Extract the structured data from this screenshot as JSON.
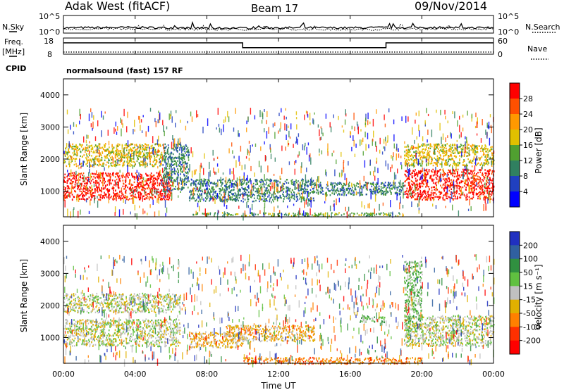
{
  "header": {
    "title": "Adak West (fitACF)",
    "beam": "Beam 17",
    "date": "09/Nov/2014"
  },
  "sky_panel": {
    "left_label": "N.Sky",
    "right_label": "N.Search",
    "left_ticks": [
      "10^5",
      "10^0"
    ],
    "right_ticks": [
      "10^5",
      "10^0"
    ]
  },
  "freq_panel": {
    "left_label_line1": "Freq.",
    "left_label_line2": "[MHz]",
    "left_ticks": [
      "18",
      "8"
    ],
    "right_label": "Nave",
    "right_ticks": [
      "60",
      "0"
    ],
    "cpid_label": "CPID",
    "cpid_text": "normalsound (fast) 157 RF"
  },
  "x_axis": {
    "ticks": [
      "00:00",
      "04:00",
      "08:00",
      "12:00",
      "16:00",
      "20:00",
      "00:00"
    ],
    "label": "Time UT"
  },
  "power_panel": {
    "ylabel": "Slant Range [km]",
    "yticks": [
      "1000",
      "2000",
      "3000",
      "4000"
    ],
    "colorbar_label": "Power [dB]",
    "colorbar_ticks": [
      "4",
      "8",
      "12",
      "16",
      "20",
      "24",
      "28"
    ],
    "colors": [
      "#0000ff",
      "#2040c0",
      "#308060",
      "#50a030",
      "#e0c000",
      "#ff9900",
      "#ff5000",
      "#ff0000"
    ]
  },
  "velocity_panel": {
    "ylabel": "Slant Range [km]",
    "yticks": [
      "1000",
      "2000",
      "3000",
      "4000"
    ],
    "colorbar_label": "Velocity [m s⁻¹]",
    "colorbar_ticks": [
      "200",
      "100",
      "50",
      "15",
      "-15",
      "-50",
      "-100",
      "-200"
    ],
    "colors": [
      "#2030c0",
      "#3060a0",
      "#309040",
      "#60c040",
      "#c0c0c0",
      "#e0b000",
      "#ff8000",
      "#ff3000",
      "#ff0000"
    ]
  },
  "chart_data": [
    {
      "type": "line",
      "title": "N.Sky / N.Search",
      "x_unit": "hours UT",
      "ylim_log10": [
        0,
        5
      ],
      "series": [
        {
          "name": "N.Sky",
          "x": [
            0,
            4,
            8,
            12,
            16,
            20,
            24
          ],
          "log10_values": [
            1.5,
            1.6,
            1.4,
            1.5,
            1.5,
            1.6,
            1.5
          ]
        },
        {
          "name": "N.Search",
          "x": [
            0,
            4,
            8,
            12,
            16,
            20,
            24
          ],
          "log10_values": [
            1.1,
            1.2,
            1.0,
            1.1,
            1.0,
            1.2,
            1.1
          ]
        }
      ]
    },
    {
      "type": "line",
      "title": "Freq. [MHz] / Nave",
      "x_unit": "hours UT",
      "ylim": [
        8,
        18
      ],
      "y2lim": [
        0,
        60
      ],
      "series": [
        {
          "name": "Freq.",
          "x": [
            0,
            10,
            10,
            18,
            18,
            24
          ],
          "values": [
            15,
            15,
            12,
            12,
            15,
            15
          ]
        },
        {
          "name": "Nave",
          "x": [
            0,
            24
          ],
          "values": [
            8,
            8
          ]
        }
      ]
    },
    {
      "type": "heatmap",
      "title": "Power [dB]",
      "x_unit": "hours UT",
      "y_unit": "km",
      "xlim": [
        0,
        24
      ],
      "ylim": [
        200,
        4500
      ],
      "clim": [
        0,
        30
      ],
      "regions": [
        {
          "t": [
            0,
            6
          ],
          "r": [
            750,
            1600
          ],
          "value": 28
        },
        {
          "t": [
            0,
            5.5
          ],
          "r": [
            1800,
            2500
          ],
          "value": 18
        },
        {
          "t": [
            5.5,
            7
          ],
          "r": [
            1000,
            2500
          ],
          "value": 8
        },
        {
          "t": [
            7,
            14
          ],
          "r": [
            700,
            1400
          ],
          "value": 10
        },
        {
          "t": [
            14,
            19
          ],
          "r": [
            900,
            1300
          ],
          "value": 8
        },
        {
          "t": [
            19,
            24
          ],
          "r": [
            750,
            1700
          ],
          "value": 28
        },
        {
          "t": [
            19,
            24
          ],
          "r": [
            1800,
            2500
          ],
          "value": 18
        },
        {
          "t": [
            7,
            19
          ],
          "r": [
            250,
            350
          ],
          "value": 14
        }
      ]
    },
    {
      "type": "heatmap",
      "title": "Velocity [m s^-1]",
      "x_unit": "hours UT",
      "y_unit": "km",
      "xlim": [
        0,
        24
      ],
      "ylim": [
        200,
        4500
      ],
      "clim": [
        -200,
        200
      ],
      "regions": [
        {
          "t": [
            0,
            6.5
          ],
          "r": [
            750,
            1600
          ],
          "value": 0
        },
        {
          "t": [
            0,
            6.5
          ],
          "r": [
            1800,
            2400
          ],
          "value": 0
        },
        {
          "t": [
            7,
            10
          ],
          "r": [
            700,
            1200
          ],
          "value": -40
        },
        {
          "t": [
            9,
            14
          ],
          "r": [
            900,
            1400
          ],
          "value": -40
        },
        {
          "t": [
            16.5,
            18
          ],
          "r": [
            1500,
            1700
          ],
          "value": 40
        },
        {
          "t": [
            19,
            24
          ],
          "r": [
            750,
            1700
          ],
          "value": 0
        },
        {
          "t": [
            19,
            20
          ],
          "r": [
            1200,
            3400
          ],
          "value": 40
        },
        {
          "t": [
            10,
            20
          ],
          "r": [
            200,
            400
          ],
          "value": -70
        }
      ]
    }
  ]
}
